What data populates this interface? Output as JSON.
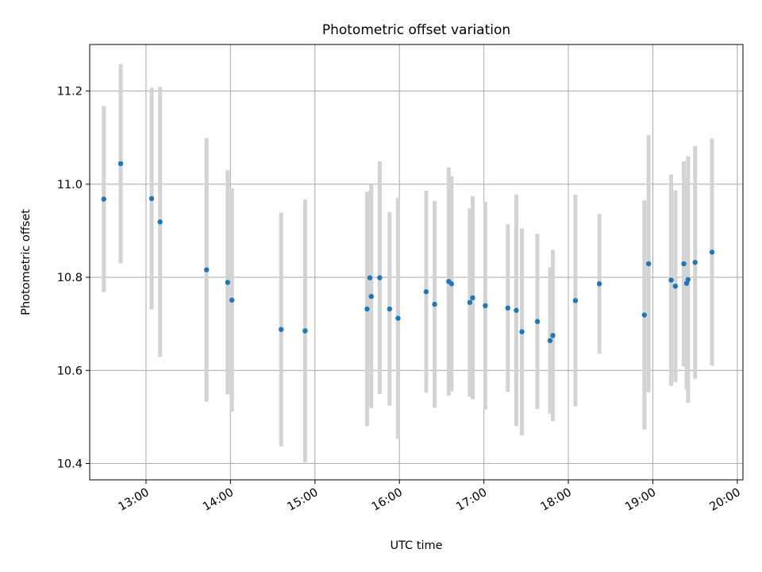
{
  "chart_data": {
    "type": "scatter",
    "title": "Photometric offset variation",
    "xlabel": "UTC time",
    "ylabel": "Photometric offset",
    "x_tick_labels": [
      "13:00",
      "14:00",
      "15:00",
      "16:00",
      "17:00",
      "18:00",
      "19:00",
      "20:00"
    ],
    "y_tick_labels": [
      "10.4",
      "10.6",
      "10.8",
      "11.0",
      "11.2"
    ],
    "xlim": [
      "12:20",
      "20:04"
    ],
    "ylim": [
      10.365,
      11.3
    ],
    "grid": true,
    "colors": {
      "points": "#1f77b4",
      "errorbars": "#d3d3d3",
      "grid": "#b0b0b0",
      "axes": "#000000"
    },
    "series": [
      {
        "points": [
          {
            "x": "12:30",
            "y": 10.968,
            "yerr": 0.2
          },
          {
            "x": "12:42",
            "y": 11.044,
            "yerr": 0.214
          },
          {
            "x": "13:04",
            "y": 10.969,
            "yerr": 0.238
          },
          {
            "x": "13:10",
            "y": 10.919,
            "yerr": 0.29
          },
          {
            "x": "13:43",
            "y": 10.816,
            "yerr": 0.283
          },
          {
            "x": "13:58",
            "y": 10.789,
            "yerr": 0.241
          },
          {
            "x": "14:01",
            "y": 10.751,
            "yerr": 0.24
          },
          {
            "x": "14:36",
            "y": 10.688,
            "yerr": 0.251
          },
          {
            "x": "14:53",
            "y": 10.685,
            "yerr": 0.282
          },
          {
            "x": "15:37",
            "y": 10.732,
            "yerr": 0.252
          },
          {
            "x": "15:39",
            "y": 10.799,
            "yerr": 0.186
          },
          {
            "x": "15:40",
            "y": 10.759,
            "yerr": 0.24
          },
          {
            "x": "15:46",
            "y": 10.799,
            "yerr": 0.25
          },
          {
            "x": "15:53",
            "y": 10.732,
            "yerr": 0.208
          },
          {
            "x": "15:59",
            "y": 10.712,
            "yerr": 0.259
          },
          {
            "x": "16:19",
            "y": 10.769,
            "yerr": 0.217
          },
          {
            "x": "16:25",
            "y": 10.742,
            "yerr": 0.222
          },
          {
            "x": "16:35",
            "y": 10.791,
            "yerr": 0.245
          },
          {
            "x": "16:37",
            "y": 10.786,
            "yerr": 0.231
          },
          {
            "x": "16:50",
            "y": 10.746,
            "yerr": 0.202
          },
          {
            "x": "16:52",
            "y": 10.756,
            "yerr": 0.218
          },
          {
            "x": "17:01",
            "y": 10.739,
            "yerr": 0.223
          },
          {
            "x": "17:17",
            "y": 10.734,
            "yerr": 0.18
          },
          {
            "x": "17:23",
            "y": 10.729,
            "yerr": 0.249
          },
          {
            "x": "17:27",
            "y": 10.683,
            "yerr": 0.222
          },
          {
            "x": "17:38",
            "y": 10.705,
            "yerr": 0.188
          },
          {
            "x": "17:47",
            "y": 10.664,
            "yerr": 0.157
          },
          {
            "x": "17:49",
            "y": 10.675,
            "yerr": 0.184
          },
          {
            "x": "18:05",
            "y": 10.75,
            "yerr": 0.227
          },
          {
            "x": "18:22",
            "y": 10.786,
            "yerr": 0.15
          },
          {
            "x": "18:54",
            "y": 10.719,
            "yerr": 0.246
          },
          {
            "x": "18:57",
            "y": 10.829,
            "yerr": 0.276
          },
          {
            "x": "19:13",
            "y": 10.794,
            "yerr": 0.227
          },
          {
            "x": "19:16",
            "y": 10.781,
            "yerr": 0.206
          },
          {
            "x": "19:22",
            "y": 10.829,
            "yerr": 0.22
          },
          {
            "x": "19:24",
            "y": 10.787,
            "yerr": 0.228
          },
          {
            "x": "19:25",
            "y": 10.795,
            "yerr": 0.265
          },
          {
            "x": "19:30",
            "y": 10.832,
            "yerr": 0.25
          },
          {
            "x": "19:42",
            "y": 10.854,
            "yerr": 0.244
          }
        ]
      }
    ]
  }
}
